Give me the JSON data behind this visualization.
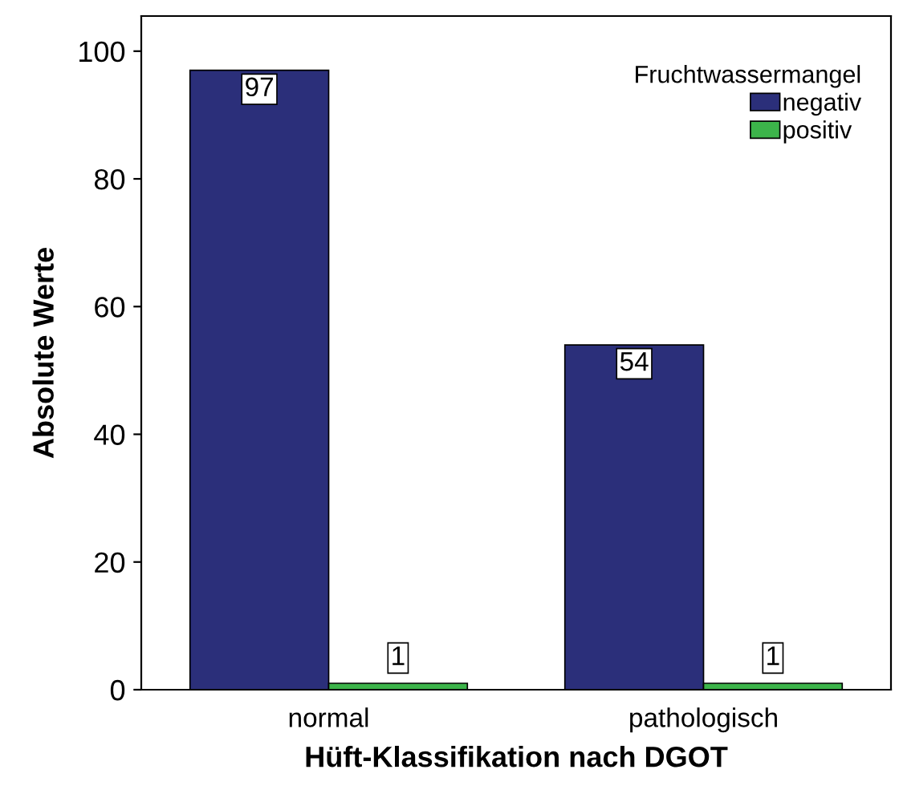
{
  "chart_data": {
    "type": "bar",
    "xlabel": "Hüft-Klassifikation nach DGOT",
    "ylabel": "Absolute Werte",
    "legend_title": "Fruchtwassermangel",
    "categories": [
      "normal",
      "pathologisch"
    ],
    "series": [
      {
        "name": "negativ",
        "color": "#2b2f7a",
        "values": [
          97,
          54
        ]
      },
      {
        "name": "positiv",
        "color": "#3cb44a",
        "values": [
          1,
          1
        ]
      }
    ],
    "ylim": [
      0,
      105.5
    ],
    "yticks": [
      0,
      20,
      40,
      60,
      80,
      100
    ],
    "data_labels": true,
    "legend": "top right",
    "grid": false
  }
}
